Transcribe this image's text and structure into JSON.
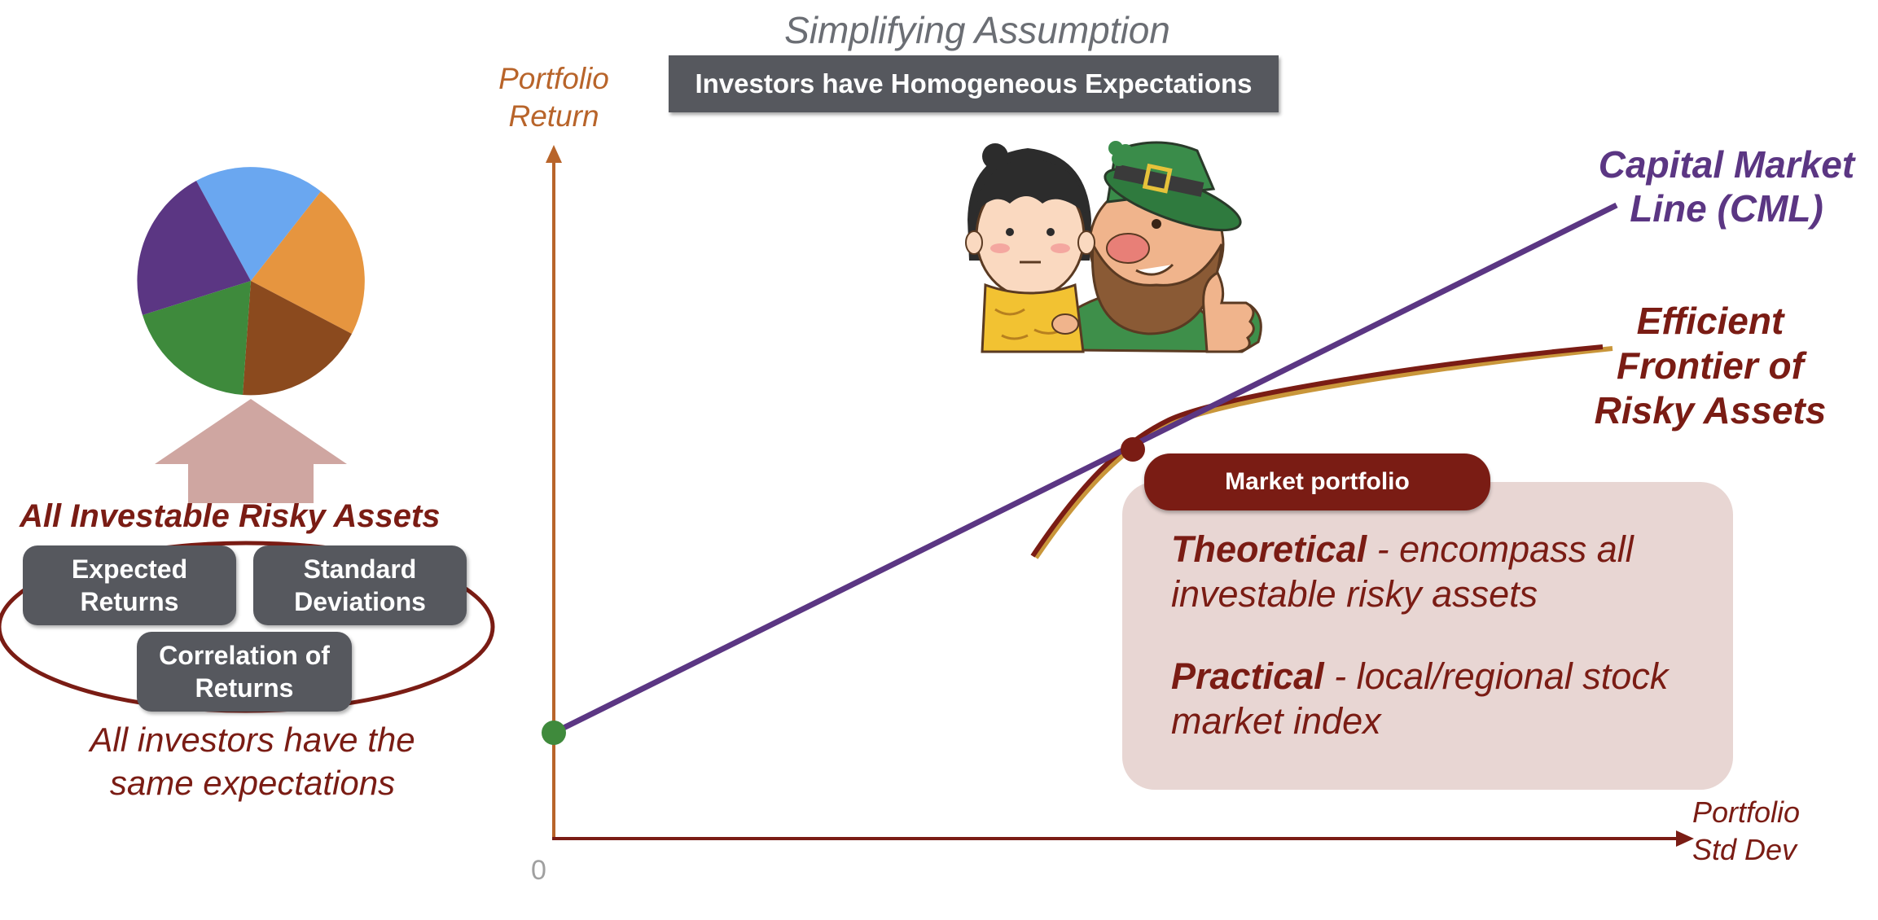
{
  "header": {
    "subtitle": "Simplifying Assumption",
    "banner": "Investors have Homogeneous Expectations"
  },
  "axes": {
    "y_label_line1": "Portfolio",
    "y_label_line2": "Return",
    "x_label_line1": "Portfolio",
    "x_label_line2": "Std Dev",
    "origin": "0"
  },
  "lines": {
    "cml_line1": "Capital Market",
    "cml_line2": "Line (CML)",
    "ef_line1": "Efficient",
    "ef_line2": "Frontier of",
    "ef_line3": "Risky Assets"
  },
  "left_panel": {
    "title": "All Investable Risky Assets",
    "box1_line1": "Expected",
    "box1_line2": "Returns",
    "box2_line1": "Standard",
    "box2_line2": "Deviations",
    "box3_line1": "Correlation of",
    "box3_line2": "Returns",
    "caption_line1": "All investors have the",
    "caption_line2": "same expectations"
  },
  "market_portfolio": {
    "pill": "Market portfolio",
    "theoretical_bold": "Theoretical",
    "theoretical_text": " - encompass all",
    "theoretical_text2": "investable risky assets",
    "practical_bold": "Practical",
    "practical_text": " - local/regional stock",
    "practical_text2": "market index"
  },
  "colors": {
    "cml": "#5b3683",
    "frontier": "#7a1c14",
    "frontier_shadow": "#c9963a",
    "axis_y": "#b8642a",
    "axis_x": "#7a1c14",
    "risk_free_point": "#3f8a3c",
    "market_point": "#7a1c14",
    "pie": [
      "#6aa7f0",
      "#e6953f",
      "#8b4a1e",
      "#3e8a3c",
      "#5b3683"
    ],
    "arrow": "#cfa6a1"
  },
  "icons": {
    "illustration": "girl-and-leprechaun-illustration"
  }
}
